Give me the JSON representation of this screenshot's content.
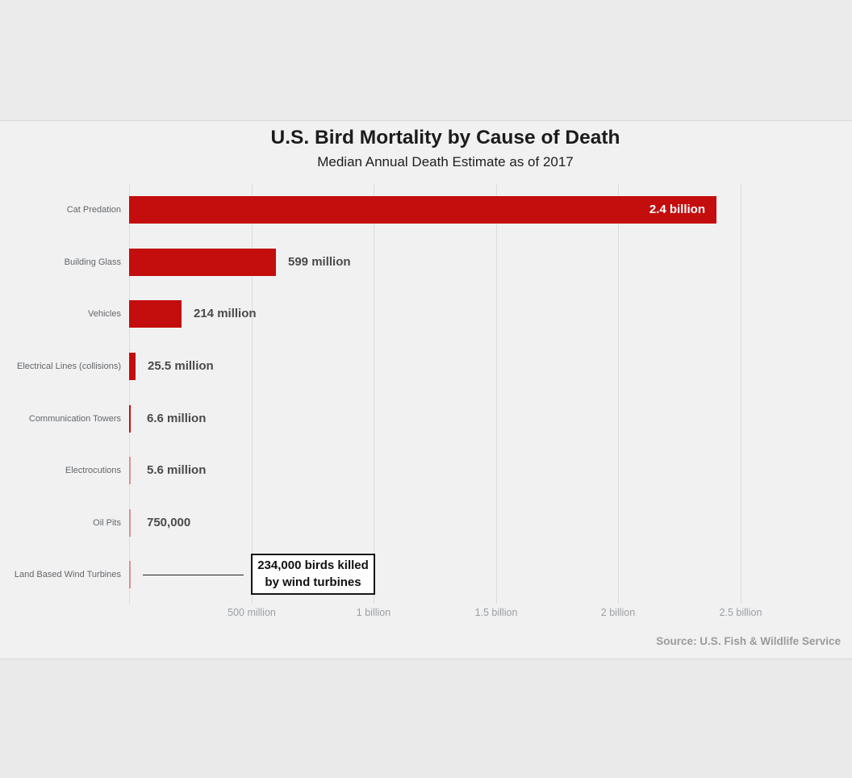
{
  "header": {
    "title": "U.S. Bird Mortality by Cause of Death",
    "subtitle": "Median Annual Death Estimate as of 2017"
  },
  "chart_data": {
    "type": "bar",
    "orientation": "horizontal",
    "title": "U.S. Bird Mortality by Cause of Death",
    "subtitle": "Median Annual Death Estimate as of 2017",
    "categories": [
      "Cat Predation",
      "Building Glass",
      "Vehicles",
      "Electrical Lines (collisions)",
      "Communication Towers",
      "Electrocutions",
      "Oil Pits",
      "Land Based Wind Turbines"
    ],
    "values": [
      2400000000,
      599000000,
      214000000,
      25500000,
      6600000,
      5600000,
      750000,
      234000
    ],
    "value_labels": [
      "2.4 billion",
      "599 million",
      "214 million",
      "25.5 million",
      "6.6 million",
      "5.6 million",
      "750,000",
      ""
    ],
    "label_inside": [
      true,
      false,
      false,
      false,
      false,
      false,
      false,
      false
    ],
    "xlim": [
      0,
      2500000000
    ],
    "x_ticks": [
      {
        "value": 500000000,
        "label": "500 million"
      },
      {
        "value": 1000000000,
        "label": "1 billion"
      },
      {
        "value": 1500000000,
        "label": "1.5 billion"
      },
      {
        "value": 2000000000,
        "label": "2 billion"
      },
      {
        "value": 2500000000,
        "label": "2.5 billion"
      }
    ],
    "grid": true,
    "legend": "none",
    "bar_color": "#c40d0d",
    "small_bar_color": "#d99292",
    "annotation": {
      "line1": "234,000 birds killed",
      "line2": "by wind turbines",
      "value": 234000,
      "category": "Land Based Wind Turbines"
    },
    "source": "Source: U.S. Fish & Wildlife Service"
  },
  "theme": {
    "top_band": "#ebebeb",
    "chart_background": "#f1f1f2",
    "bottom_band": "#eaeaea",
    "gridline_color": "#dcdcdc"
  }
}
